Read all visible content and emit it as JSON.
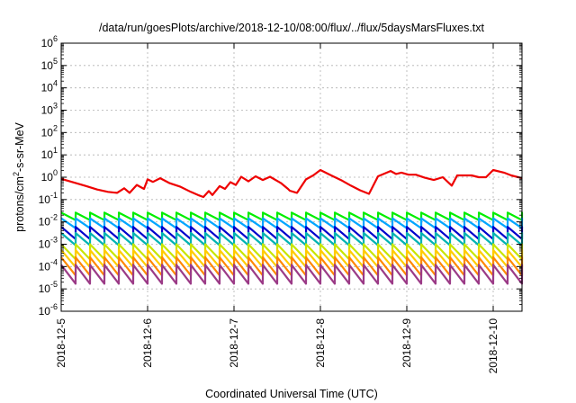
{
  "chart_data": {
    "type": "line",
    "title": "/data/run/goesPlots/archive/2018-12-10/08:00/flux/../flux/5daysMarsFluxes.txt",
    "xlabel": "Coordinated Universal Time (UTC)",
    "ylabel_parts": {
      "base": "protons/cm",
      "exp": "2",
      "rest": "-s-sr-MeV"
    },
    "x_range": [
      "2018-12-05",
      "2018-12-10 08:00"
    ],
    "x_ticks": [
      "2018-12-5",
      "2018-12-6",
      "2018-12-7",
      "2018-12-8",
      "2018-12-9",
      "2018-12-10"
    ],
    "y_scale": "log",
    "ylim": [
      1e-06,
      1000000.0
    ],
    "y_ticks": [
      {
        "base": "10",
        "exp": "-6"
      },
      {
        "base": "10",
        "exp": "-5"
      },
      {
        "base": "10",
        "exp": "-4"
      },
      {
        "base": "10",
        "exp": "-3"
      },
      {
        "base": "10",
        "exp": "-2"
      },
      {
        "base": "10",
        "exp": "-1"
      },
      {
        "base": "10",
        "exp": "0"
      },
      {
        "base": "10",
        "exp": "1"
      },
      {
        "base": "10",
        "exp": "2"
      },
      {
        "base": "10",
        "exp": "3"
      },
      {
        "base": "10",
        "exp": "4"
      },
      {
        "base": "10",
        "exp": "5"
      },
      {
        "base": "10",
        "exp": "6"
      }
    ],
    "grid": true,
    "legend": "none",
    "sawtooth_sample_times": [
      "2018-12-05 00:00",
      "2018-12-05 04:00",
      "2018-12-05 04:01"
    ],
    "series": [
      {
        "color": "#ee0000",
        "x": [
          "2018-12-05 00:00",
          "2018-12-05 04:00",
          "2018-12-05 07:00",
          "2018-12-05 10:00",
          "2018-12-05 13:00",
          "2018-12-05 15:30",
          "2018-12-05 17:30",
          "2018-12-05 19:00",
          "2018-12-05 21:00",
          "2018-12-05 23:00",
          "2018-12-06 00:00",
          "2018-12-06 01:30",
          "2018-12-06 03:30",
          "2018-12-06 06:00",
          "2018-12-06 09:00",
          "2018-12-06 12:00",
          "2018-12-06 14:00",
          "2018-12-06 15:30",
          "2018-12-06 17:00",
          "2018-12-06 18:00",
          "2018-12-06 20:00",
          "2018-12-06 21:30",
          "2018-12-06 23:00",
          "2018-12-07 00:30",
          "2018-12-07 02:00",
          "2018-12-07 04:00",
          "2018-12-07 06:00",
          "2018-12-07 08:00",
          "2018-12-07 10:00",
          "2018-12-07 13:00",
          "2018-12-07 15:00",
          "2018-12-07 15:30",
          "2018-12-07 17:30",
          "2018-12-07 20:00",
          "2018-12-07 22:00",
          "2018-12-08 00:00",
          "2018-12-08 03:00",
          "2018-12-08 06:00",
          "2018-12-08 08:30",
          "2018-12-08 11:00",
          "2018-12-08 13:30",
          "2018-12-08 16:00",
          "2018-12-08 19:30",
          "2018-12-08 21:00",
          "2018-12-08 22:30",
          "2018-12-09 00:30",
          "2018-12-09 02:30",
          "2018-12-09 05:00",
          "2018-12-09 07:30",
          "2018-12-09 10:00",
          "2018-12-09 12:30",
          "2018-12-09 14:00",
          "2018-12-09 16:30",
          "2018-12-09 18:00",
          "2018-12-09 20:00",
          "2018-12-09 22:00",
          "2018-12-10 00:00",
          "2018-12-10 03:00",
          "2018-12-10 05:00",
          "2018-12-10 08:00"
        ],
        "y": [
          0.85,
          0.55,
          0.4,
          0.28,
          0.22,
          0.2,
          0.32,
          0.2,
          0.45,
          0.3,
          0.8,
          0.62,
          0.9,
          0.55,
          0.38,
          0.22,
          0.16,
          0.13,
          0.24,
          0.16,
          0.4,
          0.3,
          0.6,
          0.45,
          1.05,
          0.65,
          1.1,
          0.75,
          1.05,
          0.55,
          0.3,
          0.25,
          0.2,
          0.8,
          1.2,
          2.1,
          1.2,
          0.7,
          0.42,
          0.26,
          0.18,
          1.1,
          1.9,
          1.4,
          1.6,
          1.3,
          1.3,
          0.95,
          0.75,
          1.0,
          0.42,
          1.2,
          1.2,
          1.2,
          1.0,
          1.0,
          2.1,
          1.6,
          1.2,
          0.9
        ]
      },
      {
        "color": "#00ee00",
        "low": 0.012,
        "high": 0.026
      },
      {
        "color": "#00a6ff",
        "low": 0.0052,
        "high": 0.0145
      },
      {
        "color": "#0000cc",
        "low": 0.0017,
        "high": 0.006
      },
      {
        "color": "#00b3b3",
        "low": 0.0009,
        "high": 0.0032
      },
      {
        "color": "#c9e600",
        "low": 0.00021,
        "high": 0.001
      },
      {
        "color": "#ffcc00",
        "low": 9.5e-05,
        "high": 0.00055
      },
      {
        "color": "#ff8800",
        "low": 4e-05,
        "high": 0.00026
      },
      {
        "color": "#9b3b87",
        "low": 1.7e-05,
        "high": 0.00012
      }
    ]
  }
}
